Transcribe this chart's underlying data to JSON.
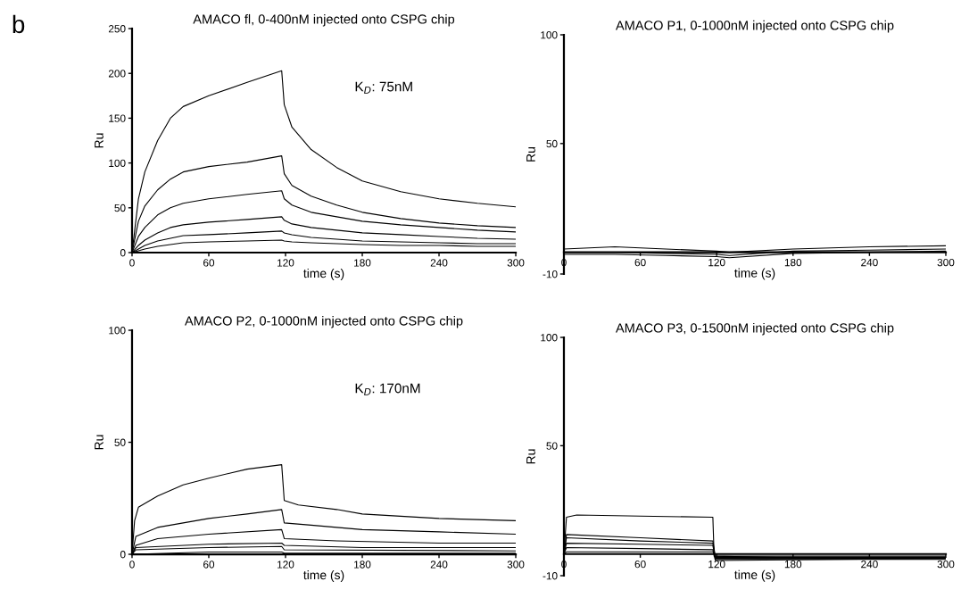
{
  "chart_data": [
    {
      "type": "line",
      "title": "AMACO fl, 0-400nM injected onto CSPG chip",
      "xlabel": "time (s)",
      "ylabel": "Ru",
      "annotations": [
        "b",
        "K$_{D}$: 75nM"
      ],
      "xlim": [
        0,
        300
      ],
      "xticks": [
        0,
        60,
        120,
        180,
        240,
        300
      ],
      "ylim": [
        0,
        250
      ],
      "yticks": [
        0,
        50,
        100,
        150,
        200,
        250
      ],
      "series": [
        {
          "color": "#000000",
          "x": [
            0,
            5,
            10,
            20,
            30,
            40,
            60,
            90,
            117,
            119,
            125,
            140,
            160,
            180,
            210,
            240,
            270,
            300
          ],
          "values": [
            0,
            60,
            90,
            125,
            150,
            163,
            175,
            190,
            203,
            165,
            140,
            115,
            95,
            80,
            68,
            60,
            55,
            51
          ]
        },
        {
          "color": "#000000",
          "x": [
            0,
            5,
            10,
            20,
            30,
            40,
            60,
            90,
            117,
            119,
            125,
            140,
            160,
            180,
            210,
            240,
            270,
            300
          ],
          "values": [
            0,
            35,
            52,
            70,
            82,
            90,
            96,
            101,
            108,
            88,
            75,
            63,
            53,
            45,
            38,
            33,
            30,
            28
          ]
        },
        {
          "color": "#000000",
          "x": [
            0,
            5,
            10,
            20,
            30,
            40,
            60,
            90,
            117,
            119,
            125,
            140,
            160,
            180,
            210,
            240,
            270,
            300
          ],
          "values": [
            0,
            18,
            28,
            42,
            50,
            55,
            60,
            65,
            69,
            60,
            53,
            45,
            40,
            35,
            31,
            28,
            25,
            23
          ]
        },
        {
          "color": "#000000",
          "x": [
            0,
            5,
            10,
            20,
            30,
            40,
            60,
            90,
            117,
            119,
            125,
            140,
            160,
            180,
            210,
            240,
            270,
            300
          ],
          "values": [
            0,
            8,
            14,
            22,
            28,
            31,
            34,
            37,
            40,
            36,
            32,
            28,
            25,
            22,
            20,
            18,
            16,
            15
          ]
        },
        {
          "color": "#000000",
          "x": [
            0,
            5,
            10,
            20,
            30,
            40,
            60,
            90,
            117,
            119,
            125,
            140,
            160,
            180,
            210,
            240,
            270,
            300
          ],
          "values": [
            0,
            4,
            8,
            13,
            16,
            19,
            20,
            22,
            24,
            22,
            20,
            17,
            15,
            13,
            12,
            11,
            10,
            10
          ]
        },
        {
          "color": "#000000",
          "x": [
            0,
            5,
            10,
            20,
            30,
            40,
            60,
            90,
            117,
            119,
            125,
            140,
            160,
            180,
            210,
            240,
            270,
            300
          ],
          "values": [
            0,
            2,
            4,
            7,
            9,
            11,
            12,
            13,
            14,
            13,
            12,
            11,
            10,
            9,
            8,
            8,
            7,
            7
          ]
        }
      ]
    },
    {
      "type": "line",
      "title": "AMACO P1, 0-1000nM injected onto CSPG chip",
      "xlabel": "time (s)",
      "ylabel": "Ru",
      "xlim": [
        0,
        300
      ],
      "xticks": [
        0,
        60,
        120,
        180,
        240,
        300
      ],
      "ylim": [
        -10,
        100
      ],
      "yticks": [
        -10,
        50,
        100
      ],
      "series": [
        {
          "color": "#000000",
          "x": [
            0,
            40,
            80,
            120,
            130,
            180,
            240,
            300
          ],
          "values": [
            1.5,
            2.5,
            1.5,
            0.5,
            0,
            1.5,
            2.5,
            3
          ]
        },
        {
          "color": "#000000",
          "x": [
            0,
            40,
            80,
            120,
            130,
            180,
            240,
            300
          ],
          "values": [
            0,
            0,
            -0.5,
            -1,
            -1.5,
            0.5,
            1,
            1.5
          ]
        },
        {
          "color": "#000000",
          "x": [
            0,
            40,
            80,
            120,
            130,
            180,
            240,
            300
          ],
          "values": [
            -1,
            -1,
            -1.5,
            -2,
            -2.5,
            -0.5,
            0,
            0.5
          ]
        }
      ]
    },
    {
      "type": "line",
      "title": "AMACO P2, 0-1000nM injected onto CSPG chip",
      "xlabel": "time (s)",
      "ylabel": "Ru",
      "annotations": [
        "K$_{D}$: 170nM"
      ],
      "xlim": [
        0,
        300
      ],
      "xticks": [
        0,
        60,
        120,
        180,
        240,
        300
      ],
      "ylim": [
        0,
        100
      ],
      "yticks": [
        0,
        50,
        100
      ],
      "series": [
        {
          "color": "#000000",
          "x": [
            0,
            2,
            5,
            20,
            40,
            60,
            90,
            117,
            119,
            130,
            160,
            180,
            240,
            300
          ],
          "values": [
            0,
            15,
            21,
            26,
            31,
            34,
            38,
            40,
            24,
            22,
            20,
            18,
            16,
            15
          ]
        },
        {
          "color": "#000000",
          "x": [
            0,
            3,
            20,
            60,
            90,
            117,
            119,
            140,
            180,
            240,
            300
          ],
          "values": [
            0,
            8,
            12,
            16,
            18,
            20,
            14,
            13,
            11,
            10,
            9
          ]
        },
        {
          "color": "#000000",
          "x": [
            0,
            3,
            20,
            60,
            117,
            119,
            160,
            240,
            300
          ],
          "values": [
            0,
            4,
            7,
            9,
            11,
            7,
            6,
            5,
            5
          ]
        },
        {
          "color": "#000000",
          "x": [
            0,
            3,
            60,
            117,
            119,
            180,
            300
          ],
          "values": [
            0,
            3,
            4.5,
            5,
            4,
            3,
            3
          ]
        },
        {
          "color": "#000000",
          "x": [
            0,
            3,
            60,
            117,
            119,
            300
          ],
          "values": [
            0,
            2,
            3,
            3.5,
            2,
            1.5
          ]
        },
        {
          "color": "#000000",
          "x": [
            0,
            60,
            117,
            119,
            300
          ],
          "values": [
            0,
            1,
            1,
            0.5,
            0.5
          ]
        }
      ]
    },
    {
      "type": "line",
      "title": "AMACO P3, 0-1500nM injected onto CSPG chip",
      "xlabel": "time (s)",
      "ylabel": "Ru",
      "xlim": [
        0,
        300
      ],
      "xticks": [
        0,
        60,
        120,
        180,
        240,
        300
      ],
      "ylim": [
        -10,
        100
      ],
      "yticks": [
        -10,
        50,
        100
      ],
      "series": [
        {
          "color": "#000000",
          "x": [
            0,
            2,
            10,
            60,
            117,
            118,
            200,
            300
          ],
          "values": [
            0,
            17,
            18,
            17.5,
            17,
            -1,
            -2,
            -2
          ]
        },
        {
          "color": "#000000",
          "x": [
            0,
            2,
            60,
            117,
            119,
            300
          ],
          "values": [
            0,
            9,
            7.5,
            6,
            -1.5,
            -1.5
          ]
        },
        {
          "color": "#000000",
          "x": [
            0,
            2,
            60,
            117,
            119,
            300
          ],
          "values": [
            0,
            7.5,
            6,
            5,
            -2,
            -2
          ]
        },
        {
          "color": "#000000",
          "x": [
            0,
            2,
            60,
            117,
            119,
            300
          ],
          "values": [
            0,
            5,
            4.5,
            4,
            -2.5,
            -2.5
          ]
        },
        {
          "color": "#000000",
          "x": [
            0,
            2,
            60,
            117,
            119,
            300
          ],
          "values": [
            0,
            3,
            2.5,
            2,
            -3,
            -2
          ]
        },
        {
          "color": "#000000",
          "x": [
            0,
            2,
            60,
            117,
            119,
            300
          ],
          "values": [
            0,
            1,
            1,
            1,
            -1,
            -1
          ]
        }
      ]
    }
  ]
}
